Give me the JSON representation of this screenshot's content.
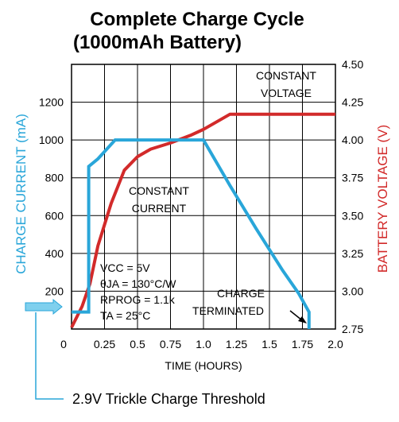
{
  "chart_data": {
    "type": "line",
    "title_line1": "Complete   Charge   Cycle",
    "title_line2": "(1000mAh Battery)",
    "xlabel": "TIME (HOURS)",
    "ylabel_left": "CHARGE CURRENT (mA)",
    "ylabel_right": "BATTERY VOLTAGE (V)",
    "xlim": [
      0,
      2.0
    ],
    "ylim_left": [
      0,
      1400
    ],
    "ylim_right": [
      2.75,
      4.5
    ],
    "grid": true,
    "x_ticks": [
      "0",
      "0.25",
      "0.5",
      "0.75",
      "1.0",
      "1.25",
      "1.5",
      "1.75",
      "2.0"
    ],
    "y_left_ticks": [
      "200",
      "400",
      "600",
      "800",
      "1000",
      "1200"
    ],
    "y_right_ticks": [
      "2.75",
      "3.00",
      "3.25",
      "3.50",
      "3.75",
      "4.00",
      "4.25",
      "4.50"
    ],
    "series": [
      {
        "axis": "left",
        "color": "#29a6d9",
        "points": [
          [
            0.0,
            90
          ],
          [
            0.13,
            90
          ],
          [
            0.13,
            860
          ],
          [
            0.2,
            900
          ],
          [
            0.33,
            1000
          ],
          [
            1.0,
            1000
          ],
          [
            1.2,
            760
          ],
          [
            1.4,
            530
          ],
          [
            1.6,
            310
          ],
          [
            1.72,
            190
          ],
          [
            1.8,
            90
          ],
          [
            1.8,
            0
          ]
        ]
      },
      {
        "axis": "right",
        "color": "#d22a2a",
        "points": [
          [
            0.0,
            2.76
          ],
          [
            0.08,
            2.9
          ],
          [
            0.14,
            3.05
          ],
          [
            0.2,
            3.3
          ],
          [
            0.3,
            3.58
          ],
          [
            0.4,
            3.8
          ],
          [
            0.5,
            3.89
          ],
          [
            0.6,
            3.94
          ],
          [
            0.75,
            3.98
          ],
          [
            0.9,
            4.03
          ],
          [
            1.0,
            4.07
          ],
          [
            1.2,
            4.17
          ],
          [
            2.0,
            4.17
          ]
        ]
      }
    ],
    "annotations": {
      "constant_voltage": [
        "CONSTANT",
        "VOLTAGE"
      ],
      "constant_current": [
        "CONSTANT",
        "CURRENT"
      ],
      "charge_terminated": [
        "CHARGE",
        "TERMINATED"
      ],
      "params": {
        "vcc": "VCC = 5V",
        "theta": "θJA = 130°C/W",
        "rprog": "RPROG = 1.1k",
        "ta": "TA = 25°C"
      }
    },
    "trickle_label": "2.9V Trickle Charge Threshold",
    "colors": {
      "current": "#29a6d9",
      "voltage": "#d22a2a",
      "grid": "#000000"
    }
  }
}
